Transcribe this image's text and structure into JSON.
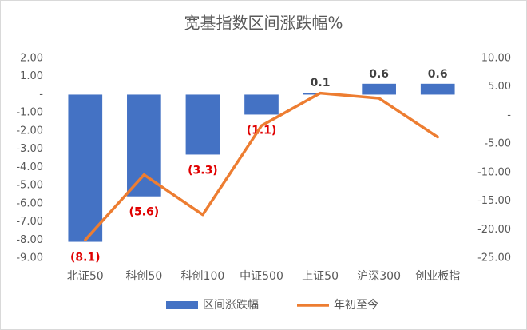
{
  "chart_data": {
    "type": "bar_line",
    "title": "宽基指数区间涨跌幅%",
    "categories": [
      "北证50",
      "科创50",
      "科创100",
      "中证500",
      "上证50",
      "沪深300",
      "创业板指"
    ],
    "series": [
      {
        "name": "区间涨跌幅",
        "type": "bar",
        "color": "#4472c4",
        "values": [
          -8.1,
          -5.6,
          -3.3,
          -1.1,
          0.1,
          0.6,
          0.6
        ],
        "value_labels": [
          "(8.1)",
          "(5.6)",
          "(3.3)",
          "(1.1)",
          "0.1",
          "0.6",
          "0.6"
        ]
      },
      {
        "name": "年初至今",
        "type": "line",
        "axis": "y2",
        "color": "#ed7d31",
        "values": [
          -21.8,
          -10.4,
          -17.4,
          -1.8,
          3.9,
          3.0,
          -3.8
        ]
      }
    ],
    "ylim": [
      -9,
      2
    ],
    "yticks": [
      {
        "value": 2,
        "label": "2.00"
      },
      {
        "value": 1,
        "label": "1.00"
      },
      {
        "value": 0,
        "label": "-"
      },
      {
        "value": -1,
        "label": "-1.00"
      },
      {
        "value": -2,
        "label": "-2.00"
      },
      {
        "value": -3,
        "label": "-3.00"
      },
      {
        "value": -4,
        "label": "-4.00"
      },
      {
        "value": -5,
        "label": "-5.00"
      },
      {
        "value": -6,
        "label": "-6.00"
      },
      {
        "value": -7,
        "label": "-7.00"
      },
      {
        "value": -8,
        "label": "-8.00"
      },
      {
        "value": -9,
        "label": "-9.00"
      }
    ],
    "y2lim": [
      -25,
      10
    ],
    "y2ticks": [
      {
        "value": 10,
        "label": "10.00"
      },
      {
        "value": 5,
        "label": "5.00"
      },
      {
        "value": 0,
        "label": "-"
      },
      {
        "value": -5,
        "label": "-5.00"
      },
      {
        "value": -10,
        "label": "-10.00"
      },
      {
        "value": -15,
        "label": "-15.00"
      },
      {
        "value": -20,
        "label": "-20.00"
      },
      {
        "value": -25,
        "label": "-25.00"
      }
    ],
    "legend": "bottom"
  }
}
